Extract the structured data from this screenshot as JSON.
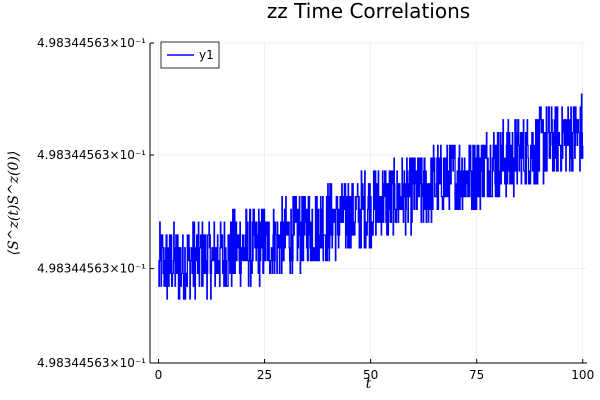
{
  "chart_data": {
    "type": "line",
    "title": "zz Time Correlations",
    "xlabel": "t",
    "ylabel": "⟨S^z(t)S^z(0)⟩",
    "xlim": [
      -2,
      101
    ],
    "ylim": [
      0,
      100
    ],
    "x_ticks": [
      {
        "value": 0,
        "label": "0"
      },
      {
        "value": 25,
        "label": "25"
      },
      {
        "value": 50,
        "label": "50"
      },
      {
        "value": 75,
        "label": "75"
      },
      {
        "value": 100,
        "label": "100"
      }
    ],
    "y_ticks": [
      {
        "value": 0,
        "label": "4.98344563×10⁻¹"
      },
      {
        "value": 29.5,
        "label": "4.98344563×10⁻¹"
      },
      {
        "value": 65,
        "label": "4.98344563×10⁻¹"
      },
      {
        "value": 100,
        "label": "4.98344563×10⁻¹"
      }
    ],
    "grid": true,
    "legend_position": "top-left",
    "series": [
      {
        "name": "y1",
        "color": "#0000ff",
        "x": [
          0,
          2.5,
          5,
          7.5,
          10,
          12.5,
          15,
          17.5,
          20,
          22.5,
          25,
          27.5,
          30,
          32.5,
          35,
          37.5,
          40,
          42.5,
          45,
          47.5,
          50,
          52.5,
          55,
          57.5,
          60,
          62.5,
          65,
          67.5,
          70,
          72.5,
          75,
          77.5,
          80,
          82.5,
          85,
          87.5,
          90,
          92.5,
          95,
          97.5,
          100
        ],
        "y": [
          30,
          31,
          31,
          32,
          33,
          33,
          34,
          35,
          36,
          36,
          37,
          38,
          39,
          40,
          42,
          43,
          44,
          45,
          46,
          47,
          49,
          50,
          51,
          52,
          53,
          54,
          56,
          57,
          58,
          59,
          60,
          62,
          63,
          64,
          66,
          67,
          68,
          69,
          70,
          71,
          72
        ],
        "noise_amplitude": 12
      }
    ]
  }
}
